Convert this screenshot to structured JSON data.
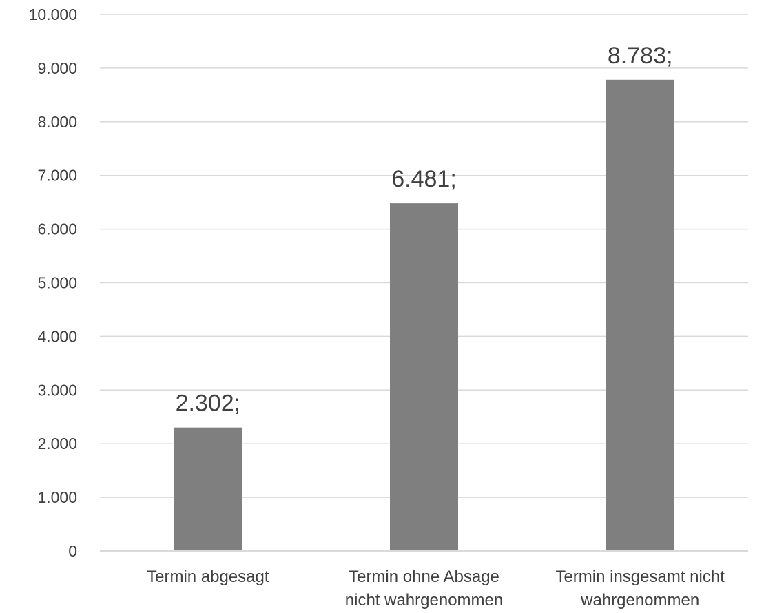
{
  "chart_data": {
    "type": "bar",
    "categories": [
      [
        "Termin abgesagt"
      ],
      [
        "Termin ohne Absage",
        "nicht wahrgenommen"
      ],
      [
        "Termin insgesamt nicht",
        "wahrgenommen"
      ]
    ],
    "values": [
      2302,
      6481,
      8783
    ],
    "data_labels": [
      "2.302;",
      "6.481;",
      "8.783;"
    ],
    "yticks": [
      0,
      1000,
      2000,
      3000,
      4000,
      5000,
      6000,
      7000,
      8000,
      9000,
      10000
    ],
    "ytick_labels": [
      "0",
      "1.000",
      "2.000",
      "3.000",
      "4.000",
      "5.000",
      "6.000",
      "7.000",
      "8.000",
      "9.000",
      "10.000"
    ],
    "ylim": [
      0,
      10000
    ],
    "grid": true,
    "bar_color": "#7f7f7f",
    "grid_color": "#d9d9d9",
    "axis_color": "#d9d9d9",
    "text_color": "#404040"
  }
}
